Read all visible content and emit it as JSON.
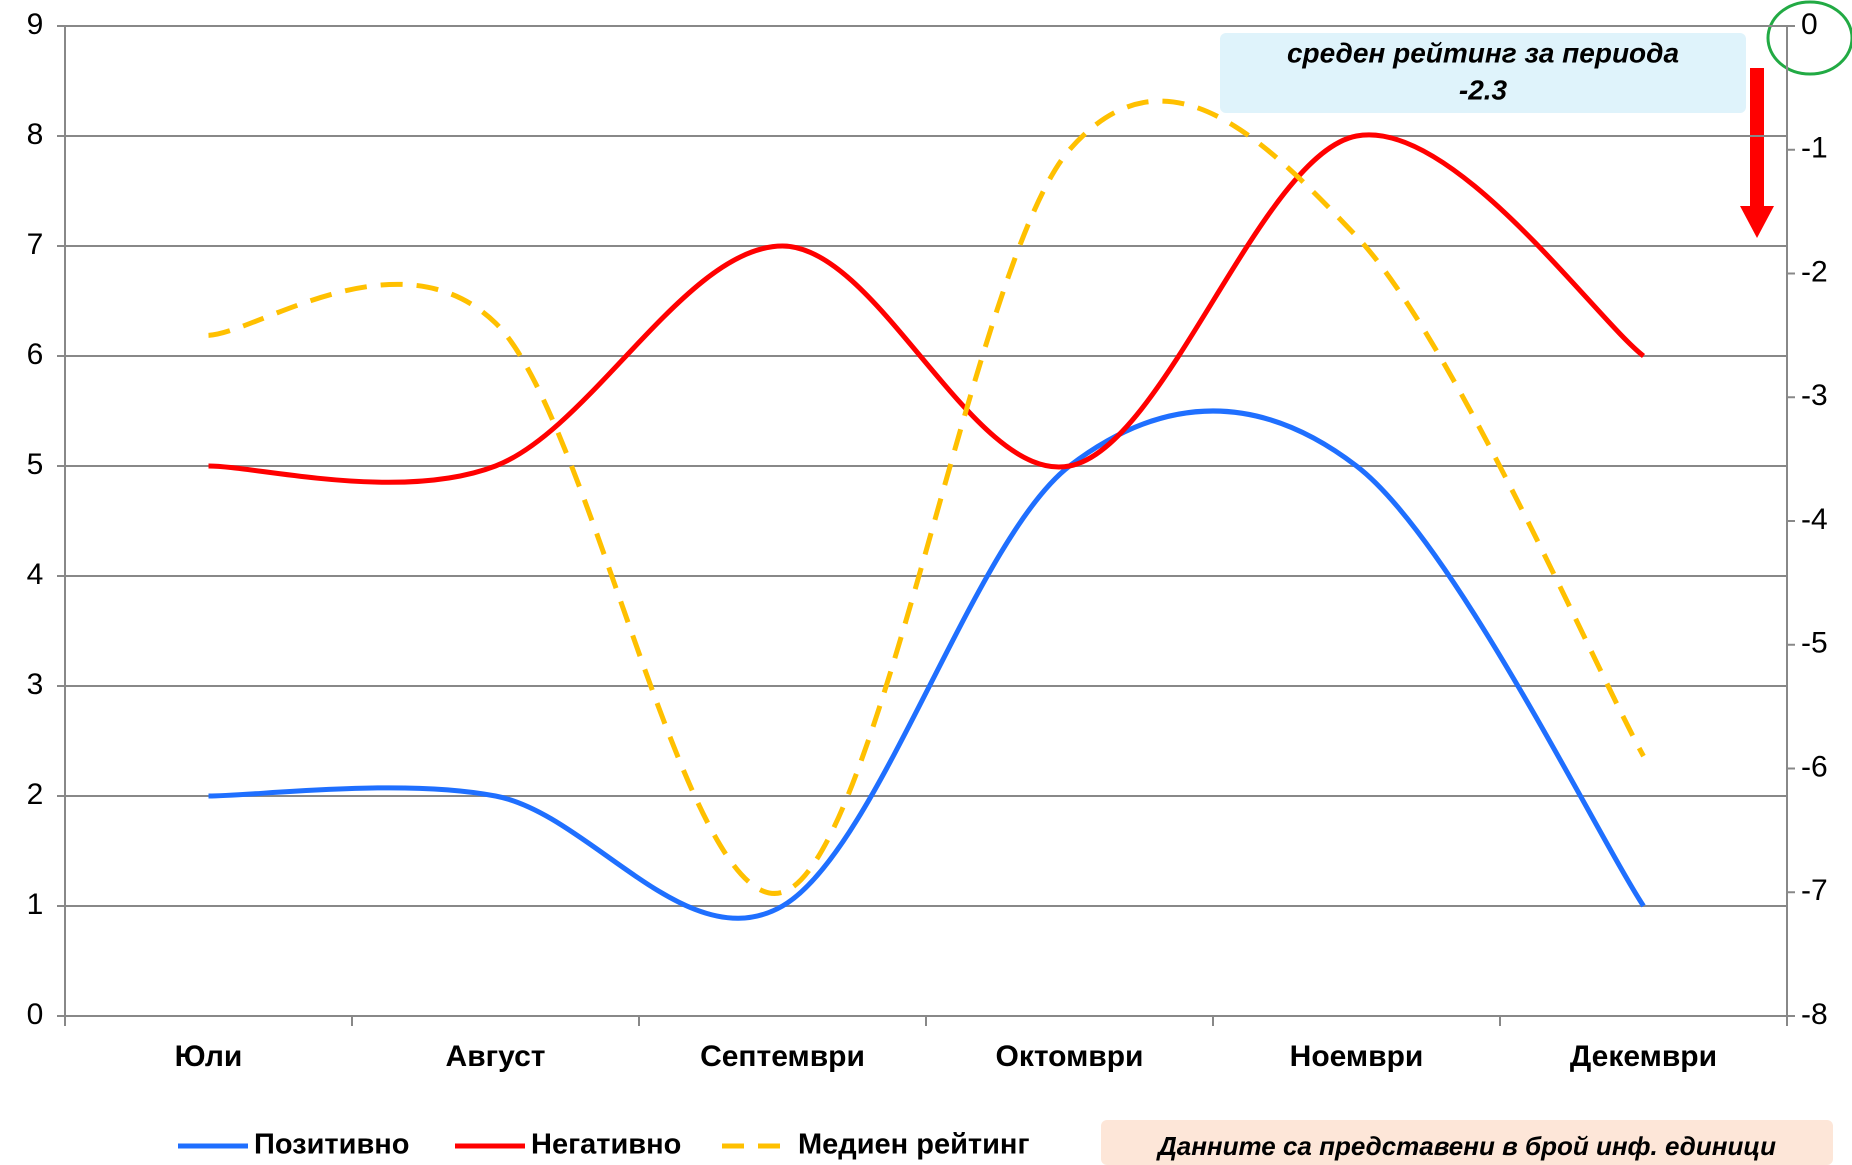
{
  "chart_data": {
    "type": "line",
    "smooth": true,
    "categories": [
      "Юли",
      "Август",
      "Септември",
      "Октомври",
      "Ноември",
      "Декември"
    ],
    "series": [
      {
        "name": "Позитивно",
        "color": "#1f6fff",
        "style": "solid",
        "values": [
          2,
          2,
          1,
          5,
          5,
          1
        ]
      },
      {
        "name": "Негативно",
        "color": "#ff0000",
        "style": "solid",
        "values": [
          5,
          5,
          7,
          5,
          8,
          6
        ]
      },
      {
        "name": "Медиен рейтинг",
        "color": "#ffc000",
        "style": "dashed",
        "axis": "y2",
        "values": [
          -2.5,
          -2.4,
          -7,
          -1,
          -1.7,
          -5.9
        ]
      }
    ],
    "ylim": [
      0,
      9
    ],
    "yticks": [
      0,
      1,
      2,
      3,
      4,
      5,
      6,
      7,
      8,
      9
    ],
    "y2lim": [
      -8,
      0
    ],
    "y2ticks": [
      0,
      -1,
      -2,
      -3,
      -4,
      -5,
      -6,
      -7,
      -8
    ],
    "grid": true,
    "annotation": [
      "среден рейтинг за периода",
      "-2.3"
    ],
    "note": "Данните са представени в брой инф. единици"
  }
}
